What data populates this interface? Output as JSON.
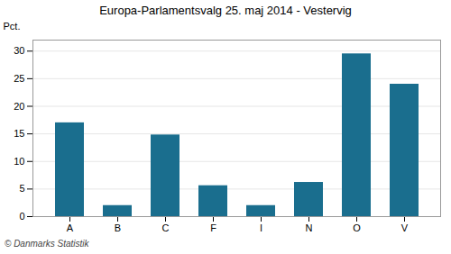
{
  "chart_data": {
    "type": "bar",
    "title": "Europa-Parlamentsvalg 25. maj 2014 - Vestervig",
    "categories": [
      "A",
      "B",
      "C",
      "F",
      "I",
      "N",
      "O",
      "V"
    ],
    "values": [
      17.0,
      2.0,
      14.8,
      5.6,
      2.0,
      6.2,
      29.5,
      24.0
    ],
    "color": "#1a6e8e",
    "ylim": [
      0,
      32
    ],
    "yticks": [
      0,
      5,
      10,
      15,
      20,
      25,
      30
    ],
    "ylabel": "Pct.",
    "annotations": [
      "© Danmarks Statistik"
    ],
    "grid": true
  }
}
